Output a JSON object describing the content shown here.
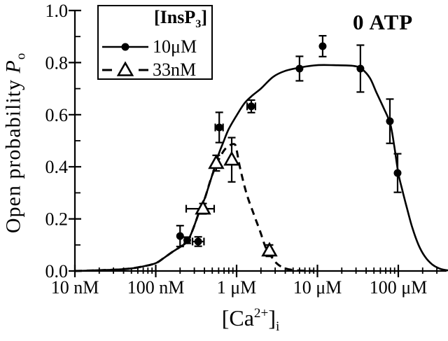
{
  "figure": {
    "annotation": "0 ATP",
    "y_axis_label": {
      "pre": "Open probability ",
      "symbol": "P",
      "sub": "o"
    },
    "x_axis_label": {
      "pre": "[Ca",
      "sup": "2+",
      "post": "]",
      "sub": "i"
    },
    "legend": {
      "title_pre": "[InsP",
      "title_sub": "3",
      "title_post": "]",
      "items": [
        {
          "label": "10μM",
          "marker": "filled-circle",
          "line": "solid"
        },
        {
          "label": "33nM",
          "marker": "open-triangle",
          "line": "dashed"
        }
      ]
    },
    "colors": {
      "foreground": "#000000",
      "background": "#ffffff"
    }
  },
  "chart_data": {
    "type": "line",
    "title": "",
    "x_axis": {
      "scale": "log",
      "unit": "nM",
      "min_nM": 10,
      "max_nM": 400000,
      "ticks": [
        {
          "nM": 10,
          "label": "10 nM"
        },
        {
          "nM": 100,
          "label": "100 nM"
        },
        {
          "nM": 1000,
          "label": "1 μM"
        },
        {
          "nM": 10000,
          "label": "10 μM"
        },
        {
          "nM": 100000,
          "label": "100 μM"
        }
      ]
    },
    "y_axis": {
      "min": 0,
      "max": 1,
      "ticks": [
        {
          "value": 0.0,
          "label": "0.0"
        },
        {
          "value": 0.2,
          "label": "0.2"
        },
        {
          "value": 0.4,
          "label": "0.4"
        },
        {
          "value": 0.6,
          "label": "0.6"
        },
        {
          "value": 0.8,
          "label": "0.8"
        },
        {
          "value": 1.0,
          "label": "1.0"
        }
      ]
    },
    "series": [
      {
        "name": "10μM InsP3",
        "marker": "filled-circle",
        "line": "solid",
        "points": [
          {
            "ca_nM": 200,
            "po": 0.134,
            "yerr": 0.04
          },
          {
            "ca_nM": 245,
            "po": 0.118,
            "yerr": 0.012
          },
          {
            "ca_nM": 335,
            "po": 0.113,
            "yerr": 0.018,
            "xerr_lo_nM": 285,
            "xerr_hi_nM": 395
          },
          {
            "ca_nM": 610,
            "po": 0.551,
            "yerr": 0.058,
            "xerr_lo_nM": 545,
            "xerr_hi_nM": 680
          },
          {
            "ca_nM": 1520,
            "po": 0.632,
            "yerr": 0.024,
            "xerr_lo_nM": 1350,
            "xerr_hi_nM": 1710
          },
          {
            "ca_nM": 6000,
            "po": 0.777,
            "yerr": 0.047
          },
          {
            "ca_nM": 11600,
            "po": 0.863,
            "yerr": 0.04
          },
          {
            "ca_nM": 34000,
            "po": 0.777,
            "yerr": 0.09
          },
          {
            "ca_nM": 78700,
            "po": 0.575,
            "yerr": 0.085
          },
          {
            "ca_nM": 98000,
            "po": 0.376,
            "yerr": 0.074
          }
        ]
      },
      {
        "name": "33nM InsP3",
        "marker": "open-triangle",
        "line": "dashed",
        "points": [
          {
            "ca_nM": 384,
            "po": 0.239,
            "yerr": 0.02,
            "xerr_lo_nM": 238,
            "xerr_hi_nM": 528
          },
          {
            "ca_nM": 560,
            "po": 0.414,
            "yerr": 0.03
          },
          {
            "ca_nM": 870,
            "po": 0.427,
            "yerr": 0.085
          },
          {
            "ca_nM": 2550,
            "po": 0.078,
            "yerr": 0.022
          }
        ]
      }
    ],
    "fit_curves": [
      {
        "series": "10μM InsP3",
        "style": "solid",
        "samples_log10nM_po": [
          [
            1,
            0
          ],
          [
            1.2,
            0.002
          ],
          [
            1.5,
            0.005
          ],
          [
            1.7,
            0.01
          ],
          [
            1.85,
            0.018
          ],
          [
            2,
            0.03
          ],
          [
            2.1,
            0.05
          ],
          [
            2.2,
            0.072
          ],
          [
            2.3,
            0.092
          ],
          [
            2.39,
            0.113
          ],
          [
            2.46,
            0.16
          ],
          [
            2.56,
            0.247
          ],
          [
            2.61,
            0.282
          ],
          [
            2.7,
            0.37
          ],
          [
            2.78,
            0.45
          ],
          [
            2.83,
            0.49
          ],
          [
            2.9,
            0.543
          ],
          [
            3,
            0.597
          ],
          [
            3.1,
            0.645
          ],
          [
            3.2,
            0.675
          ],
          [
            3.3,
            0.7
          ],
          [
            3.45,
            0.745
          ],
          [
            3.6,
            0.768
          ],
          [
            3.8,
            0.782
          ],
          [
            4,
            0.79
          ],
          [
            4.2,
            0.79
          ],
          [
            4.45,
            0.787
          ],
          [
            4.55,
            0.775
          ],
          [
            4.65,
            0.74
          ],
          [
            4.73,
            0.685
          ],
          [
            4.82,
            0.625
          ],
          [
            4.9,
            0.565
          ],
          [
            4.95,
            0.48
          ],
          [
            5,
            0.376
          ],
          [
            5.05,
            0.31
          ],
          [
            5.1,
            0.25
          ],
          [
            5.17,
            0.17
          ],
          [
            5.25,
            0.1
          ],
          [
            5.33,
            0.055
          ],
          [
            5.42,
            0.025
          ],
          [
            5.52,
            0.008
          ],
          [
            5.62,
            0.002
          ]
        ]
      },
      {
        "series": "33nM InsP3",
        "style": "dashed",
        "samples_log10nM_po": [
          [
            1,
            0
          ],
          [
            1.5,
            0.005
          ],
          [
            1.7,
            0.01
          ],
          [
            1.85,
            0.018
          ],
          [
            2,
            0.03
          ],
          [
            2.1,
            0.05
          ],
          [
            2.2,
            0.072
          ],
          [
            2.3,
            0.092
          ],
          [
            2.39,
            0.113
          ],
          [
            2.46,
            0.16
          ],
          [
            2.56,
            0.247
          ],
          [
            2.61,
            0.282
          ],
          [
            2.7,
            0.37
          ],
          [
            2.8,
            0.44
          ],
          [
            2.88,
            0.475
          ],
          [
            2.97,
            0.487
          ],
          [
            3,
            0.465
          ],
          [
            3.04,
            0.4
          ],
          [
            3.12,
            0.3
          ],
          [
            3.21,
            0.22
          ],
          [
            3.29,
            0.153
          ],
          [
            3.36,
            0.09
          ],
          [
            3.43,
            0.055
          ],
          [
            3.5,
            0.028
          ],
          [
            3.6,
            0.01
          ],
          [
            3.75,
            0.002
          ],
          [
            3.95,
            0
          ]
        ]
      }
    ],
    "legend_position": "top-left",
    "grid": false
  }
}
